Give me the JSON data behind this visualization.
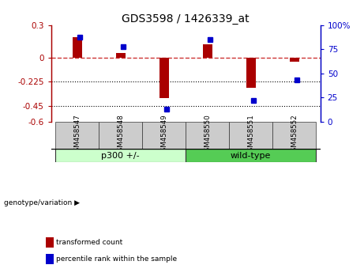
{
  "title": "GDS3598 / 1426339_at",
  "samples": [
    "GSM458547",
    "GSM458548",
    "GSM458549",
    "GSM458550",
    "GSM458551",
    "GSM458552"
  ],
  "red_values": [
    0.19,
    0.04,
    -0.38,
    0.12,
    -0.28,
    -0.04
  ],
  "blue_values_pct": [
    88,
    78,
    13,
    85,
    22,
    43
  ],
  "ylim_left": [
    -0.6,
    0.3
  ],
  "ylim_right": [
    0,
    100
  ],
  "yticks_left": [
    0.3,
    0.0,
    -0.225,
    -0.45,
    -0.6
  ],
  "yticks_right": [
    100,
    75,
    50,
    25,
    0
  ],
  "ytick_labels_left": [
    "0.3",
    "0",
    "-0.225",
    "-0.45",
    "-0.6"
  ],
  "ytick_labels_right": [
    "100%",
    "75",
    "50",
    "25",
    "0"
  ],
  "hlines_dotted": [
    -0.225,
    -0.45
  ],
  "hline_dashed": 0.0,
  "group1_label": "p300 +/-",
  "group1_indices": [
    0,
    1,
    2
  ],
  "group2_label": "wild-type",
  "group2_indices": [
    3,
    4,
    5
  ],
  "group_label_left": "genotype/variation",
  "legend1": "transformed count",
  "legend2": "percentile rank within the sample",
  "red_color": "#aa0000",
  "blue_color": "#0000cc",
  "bar_width": 0.4,
  "group1_bg": "#ccffcc",
  "group2_bg": "#55cc55",
  "sample_bg": "#cccccc",
  "bg_color": "#ffffff"
}
